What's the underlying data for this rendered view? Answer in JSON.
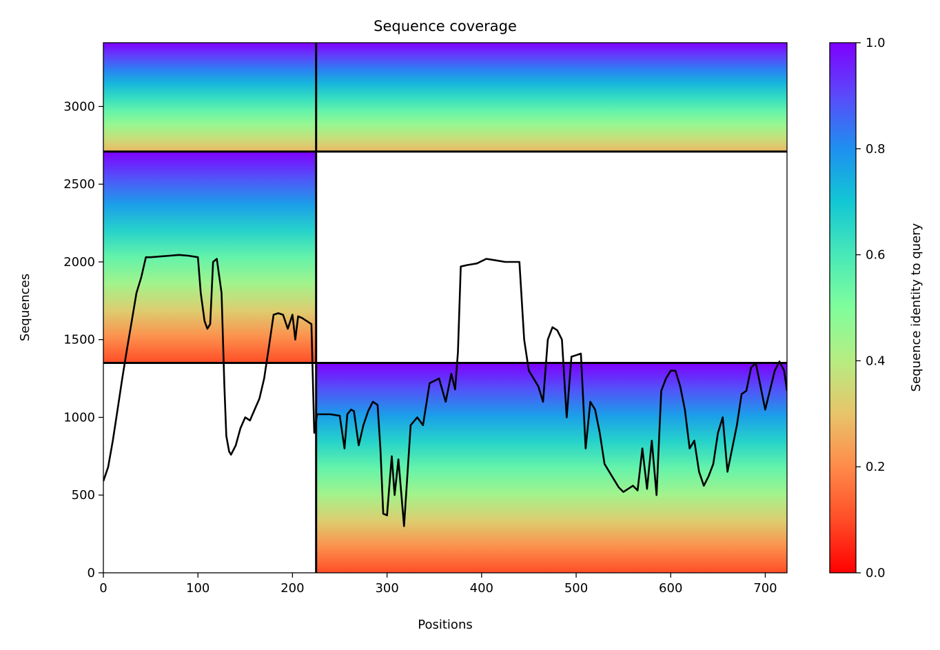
{
  "chart_data": {
    "type": "heatmap",
    "title": "Sequence coverage",
    "xlabel": "Positions",
    "ylabel": "Sequences",
    "xlim": [
      0,
      723
    ],
    "ylim": [
      0,
      3410
    ],
    "xticks": [
      0,
      100,
      200,
      300,
      400,
      500,
      600,
      700
    ],
    "yticks": [
      0,
      500,
      1000,
      1500,
      2000,
      2500,
      3000
    ],
    "grid": false,
    "colorbar": {
      "label": "Sequence identity to query",
      "range": [
        0.0,
        1.0
      ],
      "ticks": [
        "0.0",
        "0.2",
        "0.4",
        "0.6",
        "0.8",
        "1.0"
      ],
      "colormap": "rainbow"
    },
    "segment_boundaries": {
      "x": [
        225
      ],
      "y": [
        1350,
        2710
      ]
    },
    "blocks": [
      {
        "x_range": [
          0,
          225
        ],
        "y_range": [
          2710,
          3410
        ],
        "identity_top": 1.0,
        "identity_bottom": 0.28
      },
      {
        "x_range": [
          225,
          723
        ],
        "y_range": [
          2710,
          3410
        ],
        "identity_top": 1.0,
        "identity_bottom": 0.28
      },
      {
        "x_range": [
          0,
          225
        ],
        "y_range": [
          1350,
          2710
        ],
        "identity_top": 1.0,
        "identity_bottom": 0.1
      },
      {
        "x_range": [
          225,
          723
        ],
        "y_range": [
          0,
          1350
        ],
        "identity_top": 1.0,
        "identity_bottom": 0.1
      }
    ],
    "coverage_line": {
      "x": [
        0,
        5,
        10,
        15,
        20,
        25,
        30,
        35,
        40,
        45,
        50,
        60,
        70,
        80,
        90,
        100,
        103,
        107,
        110,
        113,
        116,
        120,
        125,
        128,
        130,
        133,
        135,
        140,
        145,
        150,
        155,
        160,
        165,
        170,
        175,
        180,
        185,
        190,
        195,
        200,
        203,
        206,
        210,
        215,
        220,
        223,
        226,
        230,
        240,
        250,
        255,
        258,
        262,
        265,
        270,
        275,
        280,
        285,
        290,
        293,
        296,
        300,
        303,
        305,
        308,
        312,
        318,
        325,
        332,
        338,
        345,
        355,
        362,
        368,
        372,
        375,
        378,
        385,
        395,
        405,
        415,
        425,
        440,
        445,
        450,
        455,
        460,
        465,
        470,
        475,
        480,
        485,
        490,
        495,
        500,
        505,
        510,
        515,
        520,
        525,
        530,
        540,
        545,
        550,
        555,
        560,
        565,
        570,
        575,
        580,
        585,
        590,
        595,
        600,
        605,
        610,
        615,
        620,
        625,
        630,
        635,
        640,
        645,
        650,
        655,
        660,
        670,
        675,
        680,
        685,
        690,
        700,
        710,
        715,
        720,
        723
      ],
      "y": [
        590,
        680,
        850,
        1050,
        1250,
        1440,
        1620,
        1800,
        1900,
        2030,
        2030,
        2035,
        2040,
        2045,
        2040,
        2030,
        1800,
        1620,
        1570,
        1600,
        2000,
        2020,
        1800,
        1200,
        880,
        780,
        760,
        820,
        930,
        1000,
        980,
        1050,
        1120,
        1250,
        1450,
        1660,
        1670,
        1660,
        1570,
        1660,
        1500,
        1650,
        1640,
        1620,
        1600,
        900,
        1020,
        1020,
        1020,
        1010,
        800,
        1020,
        1050,
        1040,
        820,
        950,
        1040,
        1100,
        1080,
        800,
        380,
        370,
        600,
        750,
        500,
        730,
        300,
        950,
        1000,
        950,
        1220,
        1250,
        1100,
        1280,
        1180,
        1420,
        1970,
        1980,
        1990,
        2020,
        2010,
        2000,
        2000,
        1500,
        1300,
        1250,
        1200,
        1100,
        1500,
        1580,
        1560,
        1500,
        1000,
        1390,
        1400,
        1410,
        800,
        1100,
        1050,
        900,
        700,
        600,
        550,
        520,
        540,
        560,
        530,
        800,
        540,
        850,
        500,
        1170,
        1250,
        1300,
        1300,
        1200,
        1050,
        800,
        850,
        650,
        560,
        620,
        700,
        900,
        1000,
        650,
        950,
        1150,
        1170,
        1320,
        1350,
        1050,
        1300,
        1360,
        1300,
        1170
      ]
    }
  }
}
